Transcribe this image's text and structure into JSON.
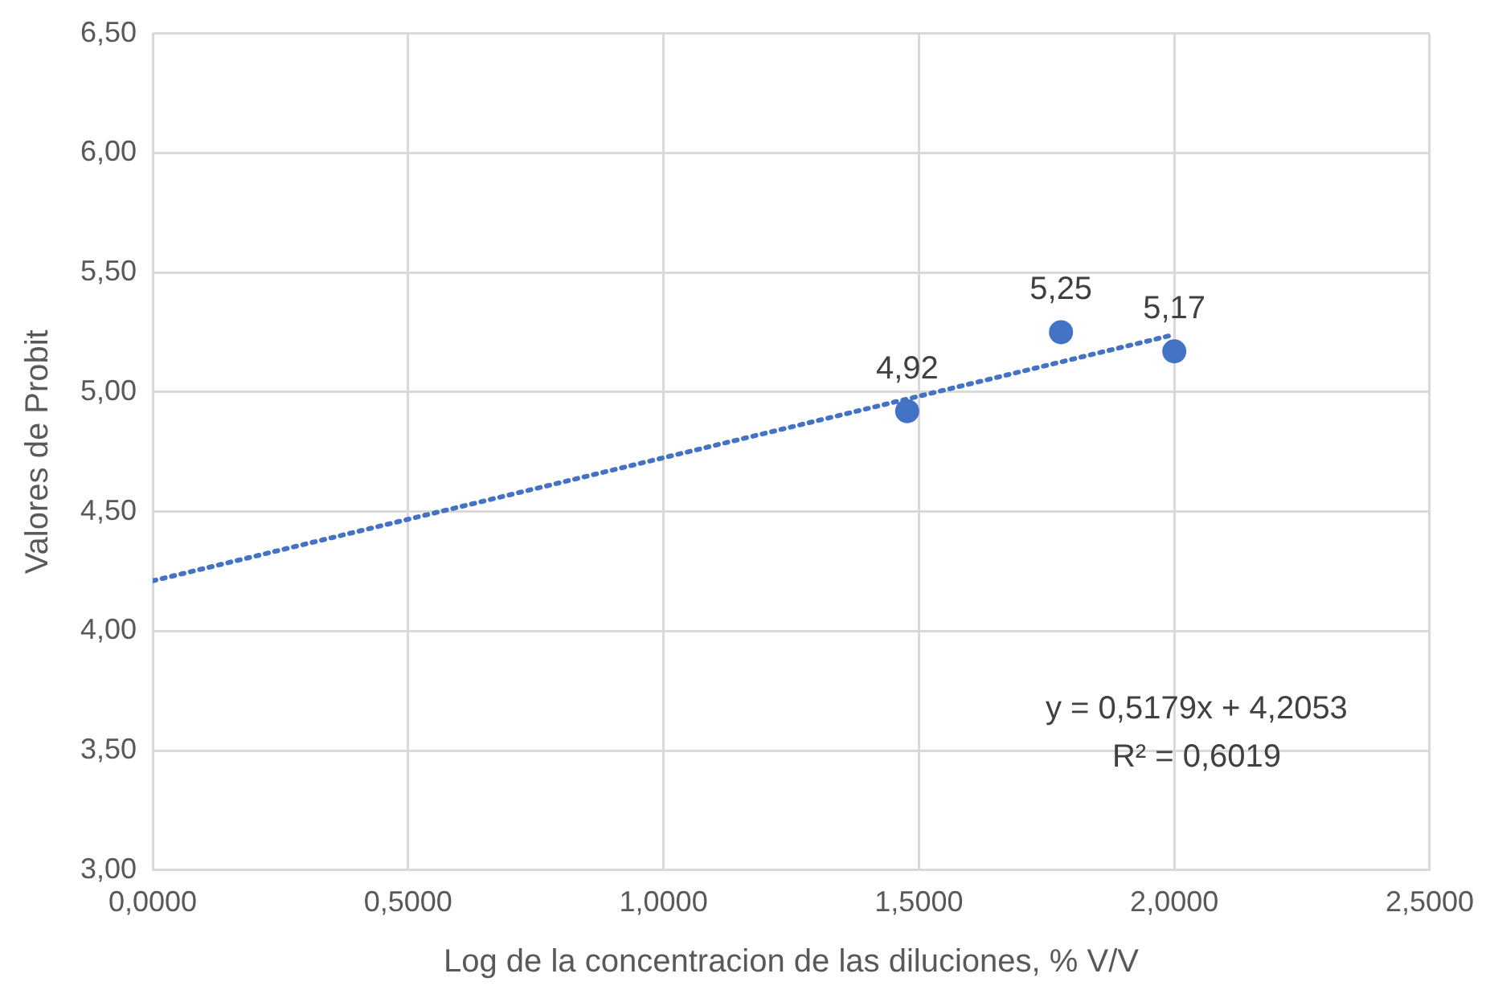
{
  "chart_data": {
    "type": "scatter",
    "xlabel": "Log de la concentracion de las diluciones, % V/V",
    "ylabel": "Valores de Probit",
    "xlim": [
      0,
      2.5
    ],
    "ylim": [
      3,
      6.5
    ],
    "xticks": [
      {
        "value": 0,
        "label": "0,0000"
      },
      {
        "value": 0.5,
        "label": "0,5000"
      },
      {
        "value": 1,
        "label": "1,0000"
      },
      {
        "value": 1.5,
        "label": "1,5000"
      },
      {
        "value": 2,
        "label": "2,0000"
      },
      {
        "value": 2.5,
        "label": "2,5000"
      }
    ],
    "yticks": [
      {
        "value": 3,
        "label": "3,00"
      },
      {
        "value": 3.5,
        "label": "3,50"
      },
      {
        "value": 4,
        "label": "4,00"
      },
      {
        "value": 4.5,
        "label": "4,50"
      },
      {
        "value": 5,
        "label": "5,00"
      },
      {
        "value": 5.5,
        "label": "5,50"
      },
      {
        "value": 6,
        "label": "6,00"
      },
      {
        "value": 6.5,
        "label": "6,50"
      }
    ],
    "grid": true,
    "series": [
      {
        "type": "scatter",
        "color": "#4472c4",
        "marker": "circle",
        "x": [
          1.4771,
          1.7782,
          2.0
        ],
        "values": [
          4.92,
          5.25,
          5.17
        ],
        "value_labels": [
          "4,92",
          "5,25",
          "5,17"
        ]
      },
      {
        "type": "line",
        "color": "#4472c4",
        "marker": "none",
        "line_style": "dotted",
        "x": [
          0,
          2.0
        ],
        "values": [
          4.21,
          5.24
        ]
      }
    ],
    "annotations": [
      "y = 0,5179x + 4,2053",
      "R² = 0,6019"
    ]
  }
}
